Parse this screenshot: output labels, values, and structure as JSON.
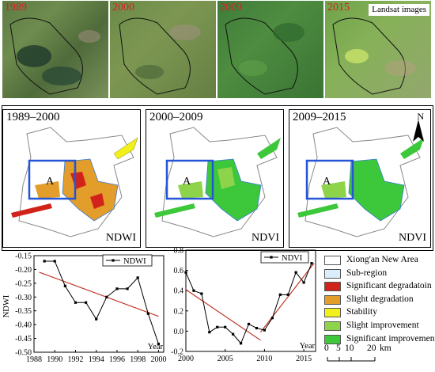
{
  "satellite_panels": [
    {
      "year": "1989",
      "badge": ""
    },
    {
      "year": "2000",
      "badge": ""
    },
    {
      "year": "2009",
      "badge": ""
    },
    {
      "year": "2015",
      "badge": "Landsat images"
    }
  ],
  "map_panels": [
    {
      "title": "1989–2000",
      "index": "NDWI",
      "zone_label": "A"
    },
    {
      "title": "2000–2009",
      "index": "NDVI",
      "zone_label": "A"
    },
    {
      "title": "2009–2015",
      "index": "NDVI",
      "zone_label": "A"
    }
  ],
  "north_arrow": "N",
  "legend": {
    "items": [
      {
        "label": "Xiong'an New Area",
        "color": "#ffffff"
      },
      {
        "label": "Sub-region",
        "color": "#d9eefa"
      },
      {
        "label": "Significant degradatoin",
        "color": "#d2231b"
      },
      {
        "label": "Slight degradation",
        "color": "#e29d2a"
      },
      {
        "label": "Stability",
        "color": "#f1f01a"
      },
      {
        "label": "Slight improvement",
        "color": "#8ed44a"
      },
      {
        "label": "Significant improvement",
        "color": "#3cc83a"
      }
    ],
    "scale_ticks": [
      "0",
      "5",
      "10",
      "20"
    ],
    "scale_unit": "km"
  },
  "colors": {
    "series_line": "#000000",
    "trend_line": "#c0392b",
    "frame": "#2355d6"
  },
  "chart_data": [
    {
      "type": "line",
      "series": [
        {
          "name": "NDWI",
          "x": [
            1989,
            1990,
            1991,
            1992,
            1993,
            1994,
            1995,
            1996,
            1997,
            1998,
            1999,
            2000
          ],
          "y": [
            -0.17,
            -0.17,
            -0.26,
            -0.32,
            -0.32,
            -0.38,
            -0.3,
            -0.27,
            -0.27,
            -0.23,
            -0.36,
            -0.47
          ]
        }
      ],
      "trend": {
        "x": [
          1988.5,
          2000
        ],
        "y": [
          -0.21,
          -0.37
        ]
      },
      "xlabel": "Year",
      "ylabel": "NDWI",
      "xlim": [
        1988,
        2000.5
      ],
      "ylim": [
        -0.5,
        -0.15
      ],
      "xticks": [
        "1988",
        "1990",
        "1992",
        "1994",
        "1996",
        "1998",
        "2000"
      ],
      "yticks": [
        "-0.15",
        "-0.20",
        "-0.25",
        "-0.30",
        "-0.35",
        "-0.40",
        "-0.45",
        "-0.50"
      ],
      "legend_position": "top-right"
    },
    {
      "type": "line",
      "series": [
        {
          "name": "NDVI",
          "x": [
            2000,
            2001,
            2002,
            2003,
            2004,
            2005,
            2006,
            2007,
            2008,
            2009,
            2010,
            2011,
            2012,
            2013,
            2014,
            2015,
            2016
          ],
          "y": [
            0.58,
            0.4,
            0.37,
            -0.01,
            0.04,
            0.04,
            -0.03,
            -0.12,
            0.07,
            0.03,
            0.01,
            0.13,
            0.36,
            0.36,
            0.58,
            0.48,
            0.67
          ]
        }
      ],
      "trend": {
        "x": [
          2000,
          2009.5
        ],
        "y": [
          0.41,
          -0.09
        ]
      },
      "trend2": {
        "x": [
          2009.5,
          2016.3
        ],
        "y": [
          -0.01,
          0.67
        ]
      },
      "xlabel": "Year",
      "ylabel": "",
      "xlim": [
        2000,
        2016.5
      ],
      "ylim": [
        -0.2,
        0.8
      ],
      "xticks": [
        "2000",
        "2005",
        "2010",
        "2015"
      ],
      "yticks": [
        "0.8",
        "0.6",
        "0.4",
        "0.2",
        "0.0",
        "-0.2"
      ],
      "legend_position": "top-right"
    }
  ]
}
